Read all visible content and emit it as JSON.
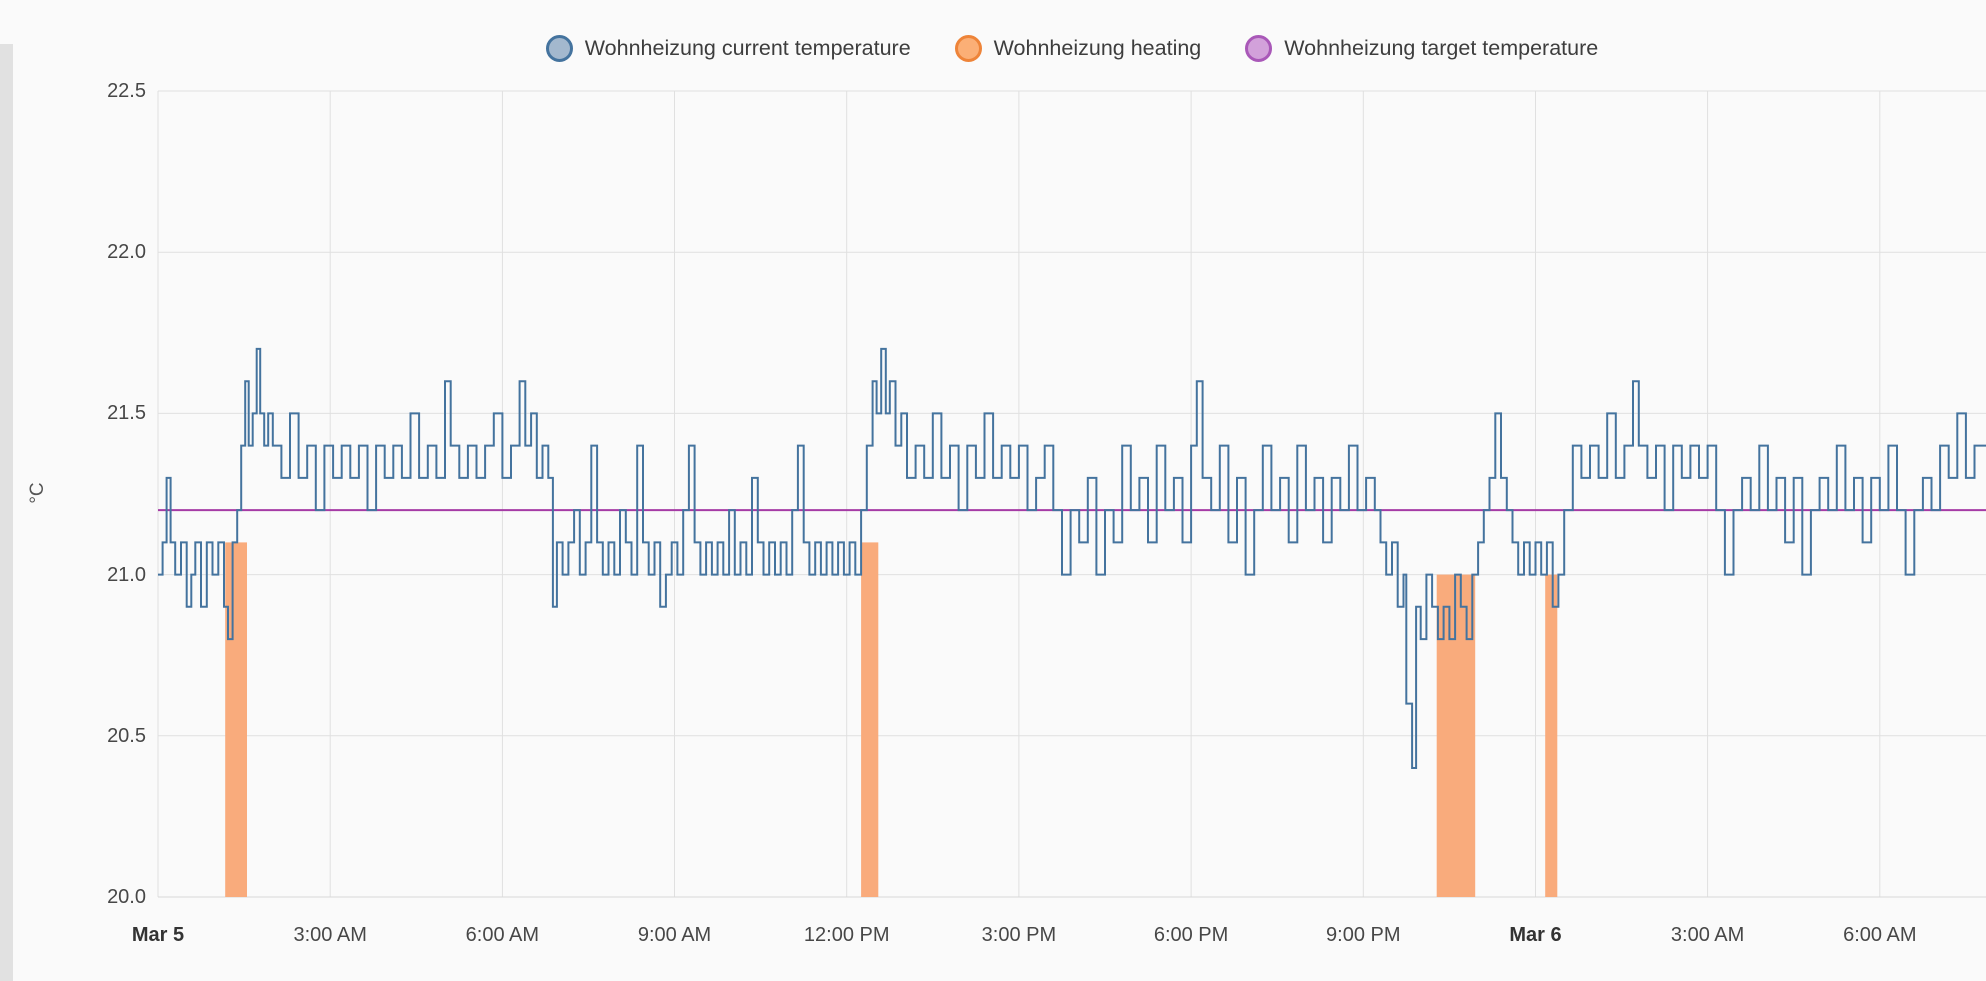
{
  "colors": {
    "background": "#fafafa",
    "grid": "#e0e0e0",
    "grid_bottom": "#d8d8d8",
    "axis_text": "#474747",
    "edge_strip": "#e1e1e1"
  },
  "chart_data": {
    "type": "line",
    "title": "",
    "ylabel": "°C",
    "xlabel": "",
    "grid": true,
    "legend_position": "top",
    "x_unit": "hours since Mar 5 12:00 AM",
    "xlim": [
      0,
      31.85
    ],
    "ylim": [
      20.0,
      22.5
    ],
    "y_ticks": [
      {
        "value": 22.5,
        "label": "22.5"
      },
      {
        "value": 22.0,
        "label": "22.0"
      },
      {
        "value": 21.5,
        "label": "21.5"
      },
      {
        "value": 21.0,
        "label": "21.0"
      },
      {
        "value": 20.5,
        "label": "20.5"
      },
      {
        "value": 20.0,
        "label": "20.0"
      }
    ],
    "x_ticks": [
      {
        "hour": 0,
        "label": "Mar 5",
        "bold": true
      },
      {
        "hour": 3,
        "label": "3:00 AM",
        "bold": false
      },
      {
        "hour": 6,
        "label": "6:00 AM",
        "bold": false
      },
      {
        "hour": 9,
        "label": "9:00 AM",
        "bold": false
      },
      {
        "hour": 12,
        "label": "12:00 PM",
        "bold": false
      },
      {
        "hour": 15,
        "label": "3:00 PM",
        "bold": false
      },
      {
        "hour": 18,
        "label": "6:00 PM",
        "bold": false
      },
      {
        "hour": 21,
        "label": "9:00 PM",
        "bold": false
      },
      {
        "hour": 24,
        "label": "Mar 6",
        "bold": true
      },
      {
        "hour": 27,
        "label": "3:00 AM",
        "bold": false
      },
      {
        "hour": 30,
        "label": "6:00 AM",
        "bold": false
      }
    ],
    "series": [
      {
        "name": "Wohnheizung current temperature",
        "render": "step-line",
        "color": "#44739e",
        "marker_fill": "#a3b8ce",
        "marker_stroke": "#44739e",
        "points": [
          [
            0,
            21.0
          ],
          [
            0.08,
            21.1
          ],
          [
            0.15,
            21.3
          ],
          [
            0.22,
            21.1
          ],
          [
            0.3,
            21.0
          ],
          [
            0.4,
            21.1
          ],
          [
            0.5,
            20.9
          ],
          [
            0.58,
            21.0
          ],
          [
            0.65,
            21.1
          ],
          [
            0.75,
            20.9
          ],
          [
            0.85,
            21.1
          ],
          [
            0.95,
            21.0
          ],
          [
            1.05,
            21.1
          ],
          [
            1.15,
            20.9
          ],
          [
            1.22,
            20.8
          ],
          [
            1.3,
            21.1
          ],
          [
            1.38,
            21.2
          ],
          [
            1.45,
            21.4
          ],
          [
            1.52,
            21.6
          ],
          [
            1.58,
            21.4
          ],
          [
            1.65,
            21.5
          ],
          [
            1.72,
            21.7
          ],
          [
            1.78,
            21.5
          ],
          [
            1.85,
            21.4
          ],
          [
            1.92,
            21.5
          ],
          [
            2.0,
            21.4
          ],
          [
            2.15,
            21.3
          ],
          [
            2.3,
            21.5
          ],
          [
            2.45,
            21.3
          ],
          [
            2.6,
            21.4
          ],
          [
            2.75,
            21.2
          ],
          [
            2.9,
            21.4
          ],
          [
            3.05,
            21.3
          ],
          [
            3.2,
            21.4
          ],
          [
            3.35,
            21.3
          ],
          [
            3.5,
            21.4
          ],
          [
            3.65,
            21.2
          ],
          [
            3.8,
            21.4
          ],
          [
            3.95,
            21.3
          ],
          [
            4.1,
            21.4
          ],
          [
            4.25,
            21.3
          ],
          [
            4.4,
            21.5
          ],
          [
            4.55,
            21.3
          ],
          [
            4.7,
            21.4
          ],
          [
            4.85,
            21.3
          ],
          [
            5.0,
            21.6
          ],
          [
            5.1,
            21.4
          ],
          [
            5.25,
            21.3
          ],
          [
            5.4,
            21.4
          ],
          [
            5.55,
            21.3
          ],
          [
            5.7,
            21.4
          ],
          [
            5.85,
            21.5
          ],
          [
            6.0,
            21.3
          ],
          [
            6.15,
            21.4
          ],
          [
            6.3,
            21.6
          ],
          [
            6.4,
            21.4
          ],
          [
            6.5,
            21.5
          ],
          [
            6.6,
            21.3
          ],
          [
            6.7,
            21.4
          ],
          [
            6.8,
            21.3
          ],
          [
            6.88,
            20.9
          ],
          [
            6.95,
            21.1
          ],
          [
            7.05,
            21.0
          ],
          [
            7.15,
            21.1
          ],
          [
            7.25,
            21.2
          ],
          [
            7.35,
            21.0
          ],
          [
            7.45,
            21.1
          ],
          [
            7.55,
            21.4
          ],
          [
            7.65,
            21.1
          ],
          [
            7.75,
            21.0
          ],
          [
            7.85,
            21.1
          ],
          [
            7.95,
            21.0
          ],
          [
            8.05,
            21.2
          ],
          [
            8.15,
            21.1
          ],
          [
            8.25,
            21.0
          ],
          [
            8.35,
            21.4
          ],
          [
            8.45,
            21.1
          ],
          [
            8.55,
            21.0
          ],
          [
            8.65,
            21.1
          ],
          [
            8.75,
            20.9
          ],
          [
            8.85,
            21.0
          ],
          [
            8.95,
            21.1
          ],
          [
            9.05,
            21.0
          ],
          [
            9.15,
            21.2
          ],
          [
            9.25,
            21.4
          ],
          [
            9.35,
            21.1
          ],
          [
            9.45,
            21.0
          ],
          [
            9.55,
            21.1
          ],
          [
            9.65,
            21.0
          ],
          [
            9.75,
            21.1
          ],
          [
            9.85,
            21.0
          ],
          [
            9.95,
            21.2
          ],
          [
            10.05,
            21.0
          ],
          [
            10.15,
            21.1
          ],
          [
            10.25,
            21.0
          ],
          [
            10.35,
            21.3
          ],
          [
            10.45,
            21.1
          ],
          [
            10.55,
            21.0
          ],
          [
            10.65,
            21.1
          ],
          [
            10.75,
            21.0
          ],
          [
            10.85,
            21.1
          ],
          [
            10.95,
            21.0
          ],
          [
            11.05,
            21.2
          ],
          [
            11.15,
            21.4
          ],
          [
            11.25,
            21.1
          ],
          [
            11.35,
            21.0
          ],
          [
            11.45,
            21.1
          ],
          [
            11.55,
            21.0
          ],
          [
            11.65,
            21.1
          ],
          [
            11.75,
            21.0
          ],
          [
            11.85,
            21.1
          ],
          [
            11.95,
            21.0
          ],
          [
            12.05,
            21.1
          ],
          [
            12.15,
            21.0
          ],
          [
            12.25,
            21.2
          ],
          [
            12.35,
            21.4
          ],
          [
            12.45,
            21.6
          ],
          [
            12.52,
            21.5
          ],
          [
            12.6,
            21.7
          ],
          [
            12.68,
            21.5
          ],
          [
            12.75,
            21.6
          ],
          [
            12.85,
            21.4
          ],
          [
            12.95,
            21.5
          ],
          [
            13.05,
            21.3
          ],
          [
            13.2,
            21.4
          ],
          [
            13.35,
            21.3
          ],
          [
            13.5,
            21.5
          ],
          [
            13.65,
            21.3
          ],
          [
            13.8,
            21.4
          ],
          [
            13.95,
            21.2
          ],
          [
            14.1,
            21.4
          ],
          [
            14.25,
            21.3
          ],
          [
            14.4,
            21.5
          ],
          [
            14.55,
            21.3
          ],
          [
            14.7,
            21.4
          ],
          [
            14.85,
            21.3
          ],
          [
            15.0,
            21.4
          ],
          [
            15.15,
            21.2
          ],
          [
            15.3,
            21.3
          ],
          [
            15.45,
            21.4
          ],
          [
            15.6,
            21.2
          ],
          [
            15.75,
            21.0
          ],
          [
            15.9,
            21.2
          ],
          [
            16.05,
            21.1
          ],
          [
            16.2,
            21.3
          ],
          [
            16.35,
            21.0
          ],
          [
            16.5,
            21.2
          ],
          [
            16.65,
            21.1
          ],
          [
            16.8,
            21.4
          ],
          [
            16.95,
            21.2
          ],
          [
            17.1,
            21.3
          ],
          [
            17.25,
            21.1
          ],
          [
            17.4,
            21.4
          ],
          [
            17.55,
            21.2
          ],
          [
            17.7,
            21.3
          ],
          [
            17.85,
            21.1
          ],
          [
            18.0,
            21.4
          ],
          [
            18.1,
            21.6
          ],
          [
            18.2,
            21.3
          ],
          [
            18.35,
            21.2
          ],
          [
            18.5,
            21.4
          ],
          [
            18.65,
            21.1
          ],
          [
            18.8,
            21.3
          ],
          [
            18.95,
            21.0
          ],
          [
            19.1,
            21.2
          ],
          [
            19.25,
            21.4
          ],
          [
            19.4,
            21.2
          ],
          [
            19.55,
            21.3
          ],
          [
            19.7,
            21.1
          ],
          [
            19.85,
            21.4
          ],
          [
            20.0,
            21.2
          ],
          [
            20.15,
            21.3
          ],
          [
            20.3,
            21.1
          ],
          [
            20.45,
            21.3
          ],
          [
            20.6,
            21.2
          ],
          [
            20.75,
            21.4
          ],
          [
            20.9,
            21.2
          ],
          [
            21.05,
            21.3
          ],
          [
            21.2,
            21.2
          ],
          [
            21.3,
            21.1
          ],
          [
            21.4,
            21.0
          ],
          [
            21.5,
            21.1
          ],
          [
            21.6,
            20.9
          ],
          [
            21.7,
            21.0
          ],
          [
            21.75,
            20.6
          ],
          [
            21.85,
            20.4
          ],
          [
            21.92,
            20.9
          ],
          [
            22.0,
            20.8
          ],
          [
            22.1,
            21.0
          ],
          [
            22.2,
            20.9
          ],
          [
            22.3,
            20.8
          ],
          [
            22.4,
            20.9
          ],
          [
            22.5,
            20.8
          ],
          [
            22.6,
            21.0
          ],
          [
            22.7,
            20.9
          ],
          [
            22.8,
            20.8
          ],
          [
            22.9,
            21.0
          ],
          [
            23.0,
            21.1
          ],
          [
            23.1,
            21.2
          ],
          [
            23.2,
            21.3
          ],
          [
            23.3,
            21.5
          ],
          [
            23.4,
            21.3
          ],
          [
            23.5,
            21.2
          ],
          [
            23.6,
            21.1
          ],
          [
            23.7,
            21.0
          ],
          [
            23.8,
            21.1
          ],
          [
            23.9,
            21.0
          ],
          [
            24.0,
            21.1
          ],
          [
            24.1,
            21.0
          ],
          [
            24.2,
            21.1
          ],
          [
            24.3,
            20.9
          ],
          [
            24.4,
            21.0
          ],
          [
            24.5,
            21.2
          ],
          [
            24.65,
            21.4
          ],
          [
            24.8,
            21.3
          ],
          [
            24.95,
            21.4
          ],
          [
            25.1,
            21.3
          ],
          [
            25.25,
            21.5
          ],
          [
            25.4,
            21.3
          ],
          [
            25.55,
            21.4
          ],
          [
            25.7,
            21.6
          ],
          [
            25.8,
            21.4
          ],
          [
            25.95,
            21.3
          ],
          [
            26.1,
            21.4
          ],
          [
            26.25,
            21.2
          ],
          [
            26.4,
            21.4
          ],
          [
            26.55,
            21.3
          ],
          [
            26.7,
            21.4
          ],
          [
            26.85,
            21.3
          ],
          [
            27.0,
            21.4
          ],
          [
            27.15,
            21.2
          ],
          [
            27.3,
            21.0
          ],
          [
            27.45,
            21.2
          ],
          [
            27.6,
            21.3
          ],
          [
            27.75,
            21.2
          ],
          [
            27.9,
            21.4
          ],
          [
            28.05,
            21.2
          ],
          [
            28.2,
            21.3
          ],
          [
            28.35,
            21.1
          ],
          [
            28.5,
            21.3
          ],
          [
            28.65,
            21.0
          ],
          [
            28.8,
            21.2
          ],
          [
            28.95,
            21.3
          ],
          [
            29.1,
            21.2
          ],
          [
            29.25,
            21.4
          ],
          [
            29.4,
            21.2
          ],
          [
            29.55,
            21.3
          ],
          [
            29.7,
            21.1
          ],
          [
            29.85,
            21.3
          ],
          [
            30.0,
            21.2
          ],
          [
            30.15,
            21.4
          ],
          [
            30.3,
            21.2
          ],
          [
            30.45,
            21.0
          ],
          [
            30.6,
            21.2
          ],
          [
            30.75,
            21.3
          ],
          [
            30.9,
            21.2
          ],
          [
            31.05,
            21.4
          ],
          [
            31.2,
            21.3
          ],
          [
            31.35,
            21.5
          ],
          [
            31.5,
            21.3
          ],
          [
            31.65,
            21.4
          ],
          [
            31.85,
            21.4
          ]
        ]
      },
      {
        "name": "Wohnheizung heating",
        "render": "bar-intervals",
        "color": "#f9ab7c",
        "marker_fill": "#fbaf76",
        "marker_stroke": "#ee8439",
        "base": 20.0,
        "intervals": [
          {
            "start": 1.17,
            "end": 1.55,
            "top": 21.1
          },
          {
            "start": 12.25,
            "end": 12.55,
            "top": 21.1
          },
          {
            "start": 22.28,
            "end": 22.95,
            "top": 21.0
          },
          {
            "start": 24.17,
            "end": 24.38,
            "top": 21.0
          }
        ]
      },
      {
        "name": "Wohnheizung target temperature",
        "render": "constant-line",
        "color": "#a53ba5",
        "marker_fill": "#d2a1da",
        "marker_stroke": "#a958b8",
        "value": 21.2
      }
    ]
  }
}
